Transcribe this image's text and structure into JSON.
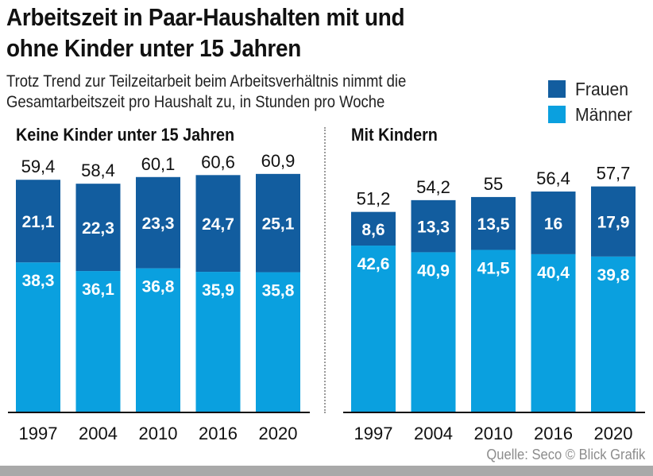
{
  "title_line1": "Arbeitszeit in Paar-Haushalten mit und",
  "title_line2": "ohne Kinder unter 15 Jahren",
  "subtitle_line1": "Trotz Trend zur Teilzeitarbeit beim Arbeitsverhältnis nimmt die",
  "subtitle_line2": "Gesamtarbeitszeit pro Haushalt zu, in Stunden pro Woche",
  "legend": [
    {
      "label": "Frauen",
      "color": "#125d9f"
    },
    {
      "label": "Männer",
      "color": "#0aa0df"
    }
  ],
  "source": "Quelle: Seco © Blick Grafik",
  "chart_data": [
    {
      "type": "bar",
      "stacked": true,
      "title": "Keine Kinder unter 15 Jahren",
      "categories": [
        "1997",
        "2004",
        "2010",
        "2016",
        "2020"
      ],
      "series": [
        {
          "name": "Männer",
          "values": [
            38.3,
            36.1,
            36.8,
            35.9,
            35.8
          ],
          "labels": [
            "38,3",
            "36,1",
            "36,8",
            "35,9",
            "35,8"
          ]
        },
        {
          "name": "Frauen",
          "values": [
            21.1,
            22.3,
            23.3,
            24.7,
            25.1
          ],
          "labels": [
            "21,1",
            "22,3",
            "23,3",
            "24,7",
            "25,1"
          ]
        }
      ],
      "totals": [
        59.4,
        58.4,
        60.1,
        60.6,
        60.9
      ],
      "total_labels": [
        "59,4",
        "58,4",
        "60,1",
        "60,6",
        "60,9"
      ],
      "ylim": [
        0,
        70
      ]
    },
    {
      "type": "bar",
      "stacked": true,
      "title": "Mit Kindern",
      "categories": [
        "1997",
        "2004",
        "2010",
        "2016",
        "2020"
      ],
      "series": [
        {
          "name": "Männer",
          "values": [
            42.6,
            40.9,
            41.5,
            40.4,
            39.8
          ],
          "labels": [
            "42,6",
            "40,9",
            "41,5",
            "40,4",
            "39,8"
          ]
        },
        {
          "name": "Frauen",
          "values": [
            8.6,
            13.3,
            13.5,
            16,
            17.9
          ],
          "labels": [
            "8,6",
            "13,3",
            "13,5",
            "16",
            "17,9"
          ]
        }
      ],
      "totals": [
        51.2,
        54.2,
        55,
        56.4,
        57.7
      ],
      "total_labels": [
        "51,2",
        "54,2",
        "55",
        "56,4",
        "57,7"
      ],
      "ylim": [
        0,
        70
      ]
    }
  ]
}
